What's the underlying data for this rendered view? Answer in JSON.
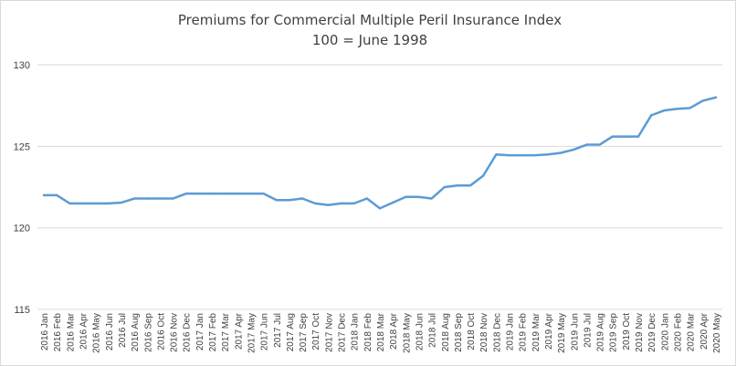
{
  "chart_data": {
    "type": "line",
    "title": "Premiums for Commercial Multiple Peril Insurance Index",
    "subtitle": "100 = June 1998",
    "xlabel": "",
    "ylabel": "",
    "ylim": [
      115,
      130
    ],
    "yticks": [
      115,
      120,
      125,
      130
    ],
    "grid": true,
    "legend": "none",
    "colors": {
      "line": "#5b9bd5",
      "grid": "#d9d9d9",
      "text": "#404040"
    },
    "categories": [
      "2016 Jan",
      "2016 Feb",
      "2016 Mar",
      "2016 Apr",
      "2016 May",
      "2016 Jun",
      "2016 Jul",
      "2016 Aug",
      "2016 Sep",
      "2016 Oct",
      "2016 Nov",
      "2016 Dec",
      "2017 Jan",
      "2017 Feb",
      "2017 Mar",
      "2017 Apr",
      "2017 May",
      "2017 Jun",
      "2017 Jul",
      "2017 Aug",
      "2017 Sep",
      "2017 Oct",
      "2017 Nov",
      "2017 Dec",
      "2018 Jan",
      "2018 Feb",
      "2018 Mar",
      "2018 Apr",
      "2018 May",
      "2018 Jun",
      "2018 Jul",
      "2018 Aug",
      "2018 Sep",
      "2018 Oct",
      "2018 Nov",
      "2018 Dec",
      "2019 Jan",
      "2019 Feb",
      "2019 Mar",
      "2019 Apr",
      "2019 May",
      "2019 Jun",
      "2019 Jul",
      "2019 Aug",
      "2019 Sep",
      "2019 Oct",
      "2019 Nov",
      "2019 Dec",
      "2020 Jan",
      "2020 Feb",
      "2020 Mar",
      "2020 Apr",
      "2020 May"
    ],
    "series": [
      {
        "values": [
          122.0,
          122.0,
          121.5,
          121.5,
          121.5,
          121.5,
          121.55,
          121.8,
          121.8,
          121.8,
          121.8,
          122.1,
          122.1,
          122.1,
          122.1,
          122.1,
          122.1,
          122.1,
          121.7,
          121.7,
          121.8,
          121.5,
          121.4,
          121.5,
          121.5,
          121.8,
          121.2,
          121.55,
          121.9,
          121.9,
          121.8,
          122.5,
          122.6,
          122.6,
          123.2,
          124.5,
          124.45,
          124.45,
          124.45,
          124.5,
          124.6,
          124.8,
          125.1,
          125.1,
          125.6,
          125.6,
          125.6,
          126.9,
          127.2,
          127.3,
          127.35,
          127.8,
          128.0
        ]
      }
    ]
  }
}
